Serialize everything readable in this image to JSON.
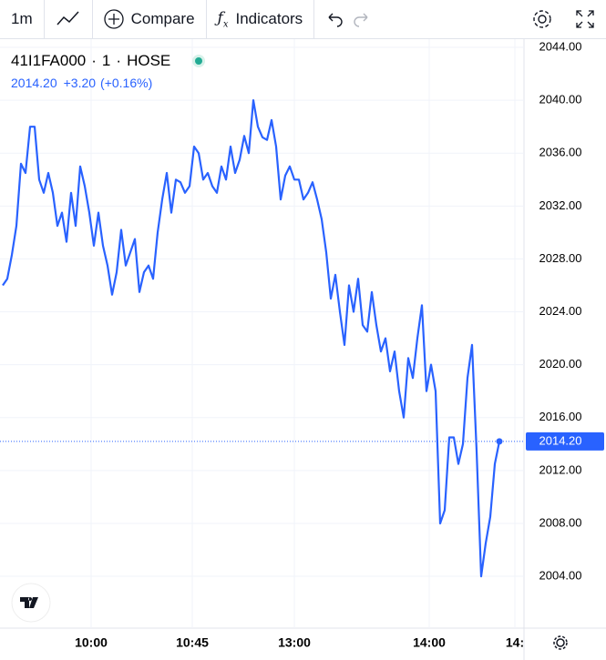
{
  "toolbar": {
    "interval": "1m",
    "compare": "Compare",
    "indicators": "Indicators"
  },
  "chart_data": {
    "type": "line",
    "legend": {
      "symbol": "41I1FA000",
      "interval": "1",
      "exchange": "HOSE",
      "price": "2014.20",
      "change": "+3.20",
      "change_pct": "(+0.16%)"
    },
    "series": [
      {
        "name": "41I1FA000",
        "color": "#2962ff",
        "values": [
          2026.0,
          2026.5,
          2028.3,
          2030.5,
          2035.2,
          2034.5,
          2038.0,
          2038.0,
          2034.0,
          2033.0,
          2034.5,
          2033.0,
          2030.5,
          2031.5,
          2029.3,
          2033.0,
          2030.5,
          2035.0,
          2033.5,
          2031.5,
          2029.0,
          2031.5,
          2029.0,
          2027.5,
          2025.3,
          2027.0,
          2030.2,
          2027.5,
          2028.5,
          2029.5,
          2025.5,
          2027.0,
          2027.5,
          2026.5,
          2030.0,
          2032.5,
          2034.5,
          2031.5,
          2034.0,
          2033.8,
          2033.0,
          2033.5,
          2036.5,
          2036.0,
          2034.0,
          2034.5,
          2033.5,
          2033.0,
          2035.0,
          2034.0,
          2036.5,
          2034.5,
          2035.5,
          2037.3,
          2036.0,
          2040.0,
          2038.0,
          2037.2,
          2037.0,
          2038.5,
          2036.5,
          2032.5,
          2034.3,
          2035.0,
          2034.0,
          2034.0,
          2032.5,
          2033.0,
          2033.8,
          2032.5,
          2031.0,
          2028.5,
          2025.0,
          2026.8,
          2024.0,
          2021.5,
          2026.0,
          2024.0,
          2026.5,
          2023.0,
          2022.5,
          2025.5,
          2023.0,
          2021.0,
          2022.0,
          2019.5,
          2021.0,
          2018.0,
          2016.0,
          2020.5,
          2019.0,
          2022.0,
          2024.5,
          2018.0,
          2020.0,
          2018.0,
          2008.0,
          2009.0,
          2014.5,
          2014.5,
          2012.5,
          2014.0,
          2019.0,
          2021.5,
          2013.5,
          2004.0,
          2006.5,
          2008.5,
          2012.5,
          2014.2
        ]
      }
    ],
    "xlim": [
      -0.6,
      114.4
    ],
    "xticks": [
      {
        "value": 19.4,
        "label": "10:00"
      },
      {
        "value": 41.6,
        "label": "10:45"
      },
      {
        "value": 64,
        "label": "13:00"
      },
      {
        "value": 93.6,
        "label": "14:00"
      },
      {
        "value": 112.4,
        "label": "14:"
      }
    ],
    "ylim": [
      2000.08,
      2044.69
    ],
    "yticks": [
      {
        "value": 2004,
        "label": "2004.00"
      },
      {
        "value": 2008,
        "label": "2008.00"
      },
      {
        "value": 2012,
        "label": "2012.00"
      },
      {
        "value": 2016,
        "label": "2016.00"
      },
      {
        "value": 2020,
        "label": "2020.00"
      },
      {
        "value": 2024,
        "label": "2024.00"
      },
      {
        "value": 2028,
        "label": "2028.00"
      },
      {
        "value": 2032,
        "label": "2032.00"
      },
      {
        "value": 2036,
        "label": "2036.00"
      },
      {
        "value": 2040,
        "label": "2040.00"
      },
      {
        "value": 2044,
        "label": "2044.00"
      }
    ],
    "grid": true
  }
}
